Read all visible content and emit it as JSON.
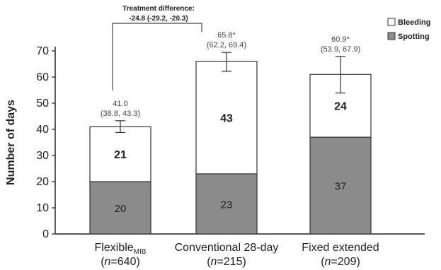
{
  "chart_data": {
    "type": "bar",
    "stacked": true,
    "categories": [
      "Flexible",
      "Conventional 28-day",
      "Fixed extended"
    ],
    "category_subscripts": [
      "MIB",
      "",
      ""
    ],
    "category_n": [
      "(n=640)",
      "(n=215)",
      "(n=209)"
    ],
    "series": [
      {
        "name": "Spotting",
        "values": [
          20,
          23,
          37
        ],
        "color": "#8c8c8c"
      },
      {
        "name": "Bleeding",
        "values": [
          21,
          43,
          24
        ],
        "color": "#ffffff"
      }
    ],
    "series_value_labels": {
      "Spotting": [
        "20",
        "23",
        "37"
      ],
      "Bleeding": [
        "21",
        "43",
        "24"
      ]
    },
    "totals": [
      41.0,
      65.8,
      60.9
    ],
    "total_labels": [
      "41.0",
      "65.8*",
      "60.9*"
    ],
    "ci_labels": [
      "(38.8, 43.3)",
      "(62.2, 69.4)",
      "(53.9, 67.9)"
    ],
    "error_bars": [
      [
        38.8,
        43.3
      ],
      [
        62.2,
        69.4
      ],
      [
        53.9,
        67.9
      ]
    ],
    "ylabel": "Number of days",
    "ylim": [
      0,
      70
    ],
    "yticks": [
      0,
      10,
      20,
      30,
      40,
      50,
      60,
      70
    ],
    "grid": false,
    "legend_position": "top-right",
    "legend": [
      "Bleeding",
      "Spotting"
    ],
    "annotation": {
      "line1": "Treatment difference:",
      "line2": "-24.8 (-29.2, -20.3)",
      "between": [
        0,
        1
      ]
    }
  }
}
